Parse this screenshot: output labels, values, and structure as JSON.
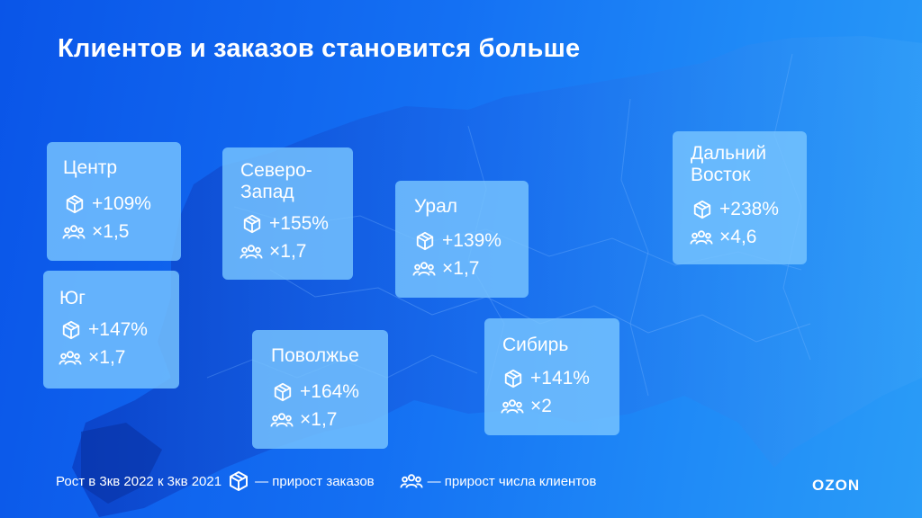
{
  "title": "Клиентов и заказов становится больше",
  "regions": [
    {
      "name": "Центр",
      "orders": "+109%",
      "clients": "×1,5"
    },
    {
      "name": "Северо-\nЗапад",
      "orders": "+155%",
      "clients": "×1,7"
    },
    {
      "name": "Урал",
      "orders": "+139%",
      "clients": "×1,7"
    },
    {
      "name": "Дальний\nВосток",
      "orders": "+238%",
      "clients": "×4,6"
    },
    {
      "name": "Юг",
      "orders": "+147%",
      "clients": "×1,7"
    },
    {
      "name": "Поволжье",
      "orders": "+164%",
      "clients": "×1,7"
    },
    {
      "name": "Сибирь",
      "orders": "+141%",
      "clients": "×2"
    }
  ],
  "footer": {
    "period": "Рост в 3кв 2022 к 3кв 2021",
    "orders_legend": "— прирост заказов",
    "clients_legend": "— прирост числа клиентов"
  },
  "logo": "OZON",
  "icons": {
    "orders": "package-icon",
    "clients": "people-icon"
  },
  "colors": {
    "background": "#1470f3",
    "card": "#78c4ff",
    "text": "#ffffff"
  }
}
